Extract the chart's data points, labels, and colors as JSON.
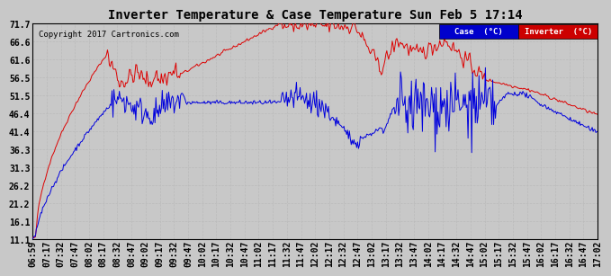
{
  "title": "Inverter Temperature & Case Temperature Sun Feb 5 17:14",
  "copyright": "Copyright 2017 Cartronics.com",
  "background_color": "#c8c8c8",
  "plot_bg_color": "#c8c8c8",
  "y_ticks": [
    11.1,
    16.1,
    21.2,
    26.2,
    31.3,
    36.3,
    41.4,
    46.4,
    51.5,
    56.5,
    61.6,
    66.6,
    71.7
  ],
  "y_min": 11.1,
  "y_max": 71.7,
  "legend": {
    "case_label": "Case  (°C)",
    "inverter_label": "Inverter  (°C)",
    "case_bg": "#0000cc",
    "inverter_bg": "#cc0000"
  },
  "x_labels": [
    "06:59",
    "07:17",
    "07:32",
    "07:47",
    "08:02",
    "08:17",
    "08:32",
    "08:47",
    "09:02",
    "09:17",
    "09:32",
    "09:47",
    "10:02",
    "10:17",
    "10:32",
    "10:47",
    "11:02",
    "11:17",
    "11:32",
    "11:47",
    "12:02",
    "12:17",
    "12:32",
    "12:47",
    "13:02",
    "13:17",
    "13:32",
    "13:47",
    "14:02",
    "14:17",
    "14:32",
    "14:47",
    "15:02",
    "15:17",
    "15:32",
    "15:47",
    "16:02",
    "16:17",
    "16:32",
    "16:47",
    "17:02"
  ],
  "inverter_color": "#dd0000",
  "case_color": "#0000dd",
  "grid_color": "#bbbbbb",
  "title_fontsize": 10,
  "tick_fontsize": 7
}
